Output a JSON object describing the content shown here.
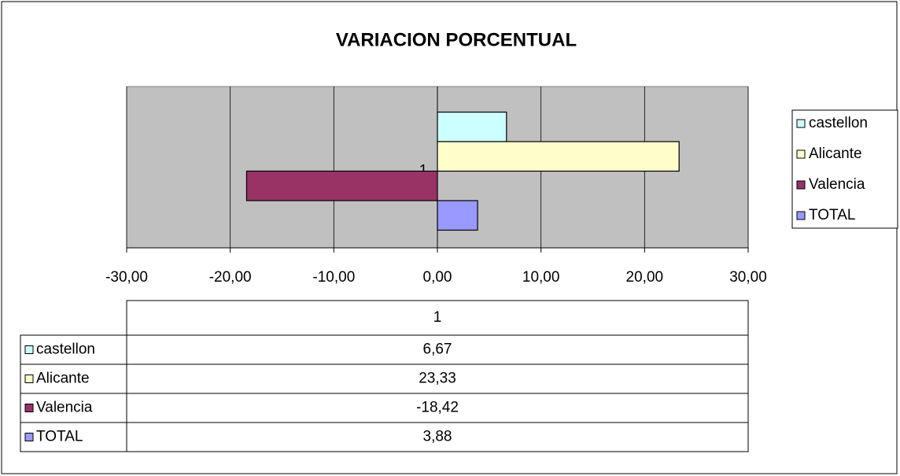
{
  "chart_data": {
    "type": "barh",
    "title": "VARIACION PORCENTUAL",
    "categories": [
      "1"
    ],
    "series": [
      {
        "name": "castellon",
        "color": "#ccffff",
        "values": [
          6.67
        ],
        "value_labels": [
          "6,67"
        ]
      },
      {
        "name": "Alicante",
        "color": "#ffffcc",
        "values": [
          23.33
        ],
        "value_labels": [
          "23,33"
        ]
      },
      {
        "name": "Valencia",
        "color": "#993366",
        "values": [
          -18.42
        ],
        "value_labels": [
          "-18,42"
        ]
      },
      {
        "name": "TOTAL",
        "color": "#9999ff",
        "values": [
          3.88
        ],
        "value_labels": [
          "3,88"
        ]
      }
    ],
    "xlim": [
      -30,
      30
    ],
    "xticks": [
      {
        "value": -30,
        "label": "-30,00"
      },
      {
        "value": -20,
        "label": "-20,00"
      },
      {
        "value": -10,
        "label": "-10,00"
      },
      {
        "value": 0,
        "label": "0,00"
      },
      {
        "value": 10,
        "label": "10,00"
      },
      {
        "value": 20,
        "label": "20,00"
      },
      {
        "value": 30,
        "label": "30,00"
      }
    ],
    "grid": true,
    "legend": "right",
    "plot_background": "#c0c0c0"
  }
}
